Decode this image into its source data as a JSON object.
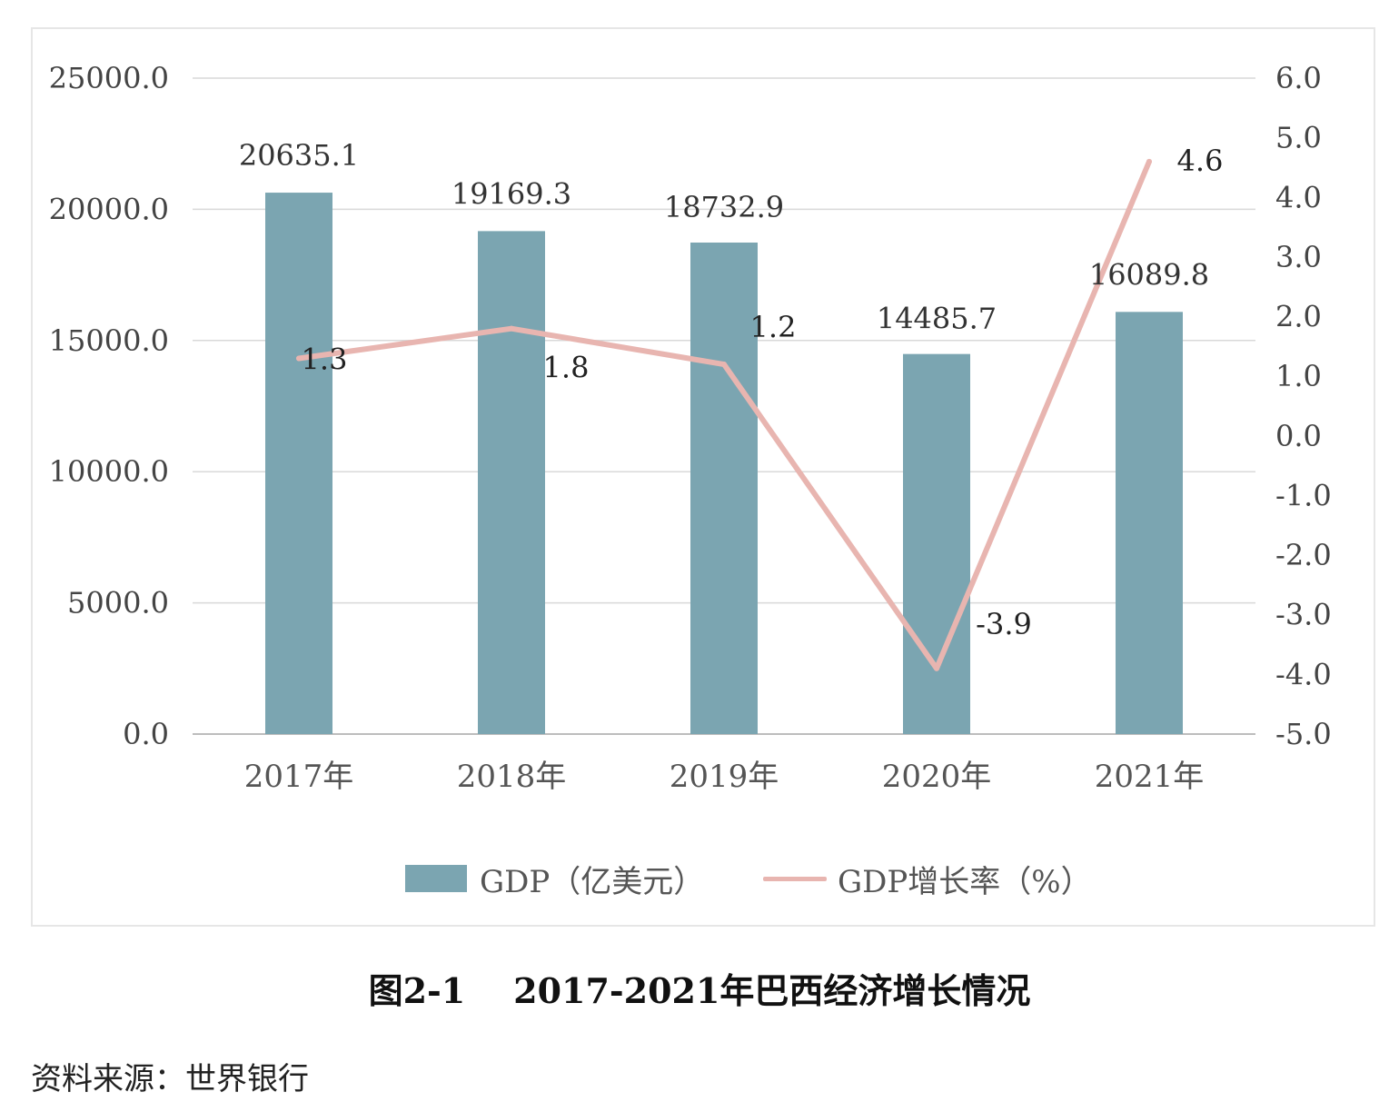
{
  "chart_data": {
    "type": "bar",
    "categories": [
      "2017年",
      "2018年",
      "2019年",
      "2020年",
      "2021年"
    ],
    "series": [
      {
        "name": "GDP（亿美元）",
        "type": "bar",
        "axis": "left",
        "color": "#7BA5B1",
        "values": [
          20635.1,
          19169.3,
          18732.9,
          14485.7,
          16089.8
        ],
        "labels": [
          "20635.1",
          "19169.3",
          "18732.9",
          "14485.7",
          "16089.8"
        ]
      },
      {
        "name": "GDP增长率（%）",
        "type": "line",
        "axis": "right",
        "color": "#E8B5B0",
        "values": [
          1.3,
          1.8,
          1.2,
          -3.9,
          4.6
        ],
        "labels": [
          "1.3",
          "1.8",
          "1.2",
          "-3.9",
          "4.6"
        ]
      }
    ],
    "y_left": {
      "ylim": [
        0,
        25000
      ],
      "ticks": [
        0,
        5000,
        10000,
        15000,
        20000,
        25000
      ],
      "tick_labels": [
        "0.0",
        "5000.0",
        "10000.0",
        "15000.0",
        "20000.0",
        "25000.0"
      ]
    },
    "y_right": {
      "ylim": [
        -5,
        6
      ],
      "ticks": [
        -5,
        -4,
        -3,
        -2,
        -1,
        0,
        1,
        2,
        3,
        4,
        5,
        6
      ],
      "tick_labels": [
        "-5.0",
        "-4.0",
        "-3.0",
        "-2.0",
        "-1.0",
        "0.0",
        "1.0",
        "2.0",
        "3.0",
        "4.0",
        "5.0",
        "6.0"
      ]
    },
    "grid": true,
    "legend_position": "bottom"
  },
  "caption": "图2-1    2017-2021年巴西经济增长情况",
  "source": "资料来源：世界银行"
}
